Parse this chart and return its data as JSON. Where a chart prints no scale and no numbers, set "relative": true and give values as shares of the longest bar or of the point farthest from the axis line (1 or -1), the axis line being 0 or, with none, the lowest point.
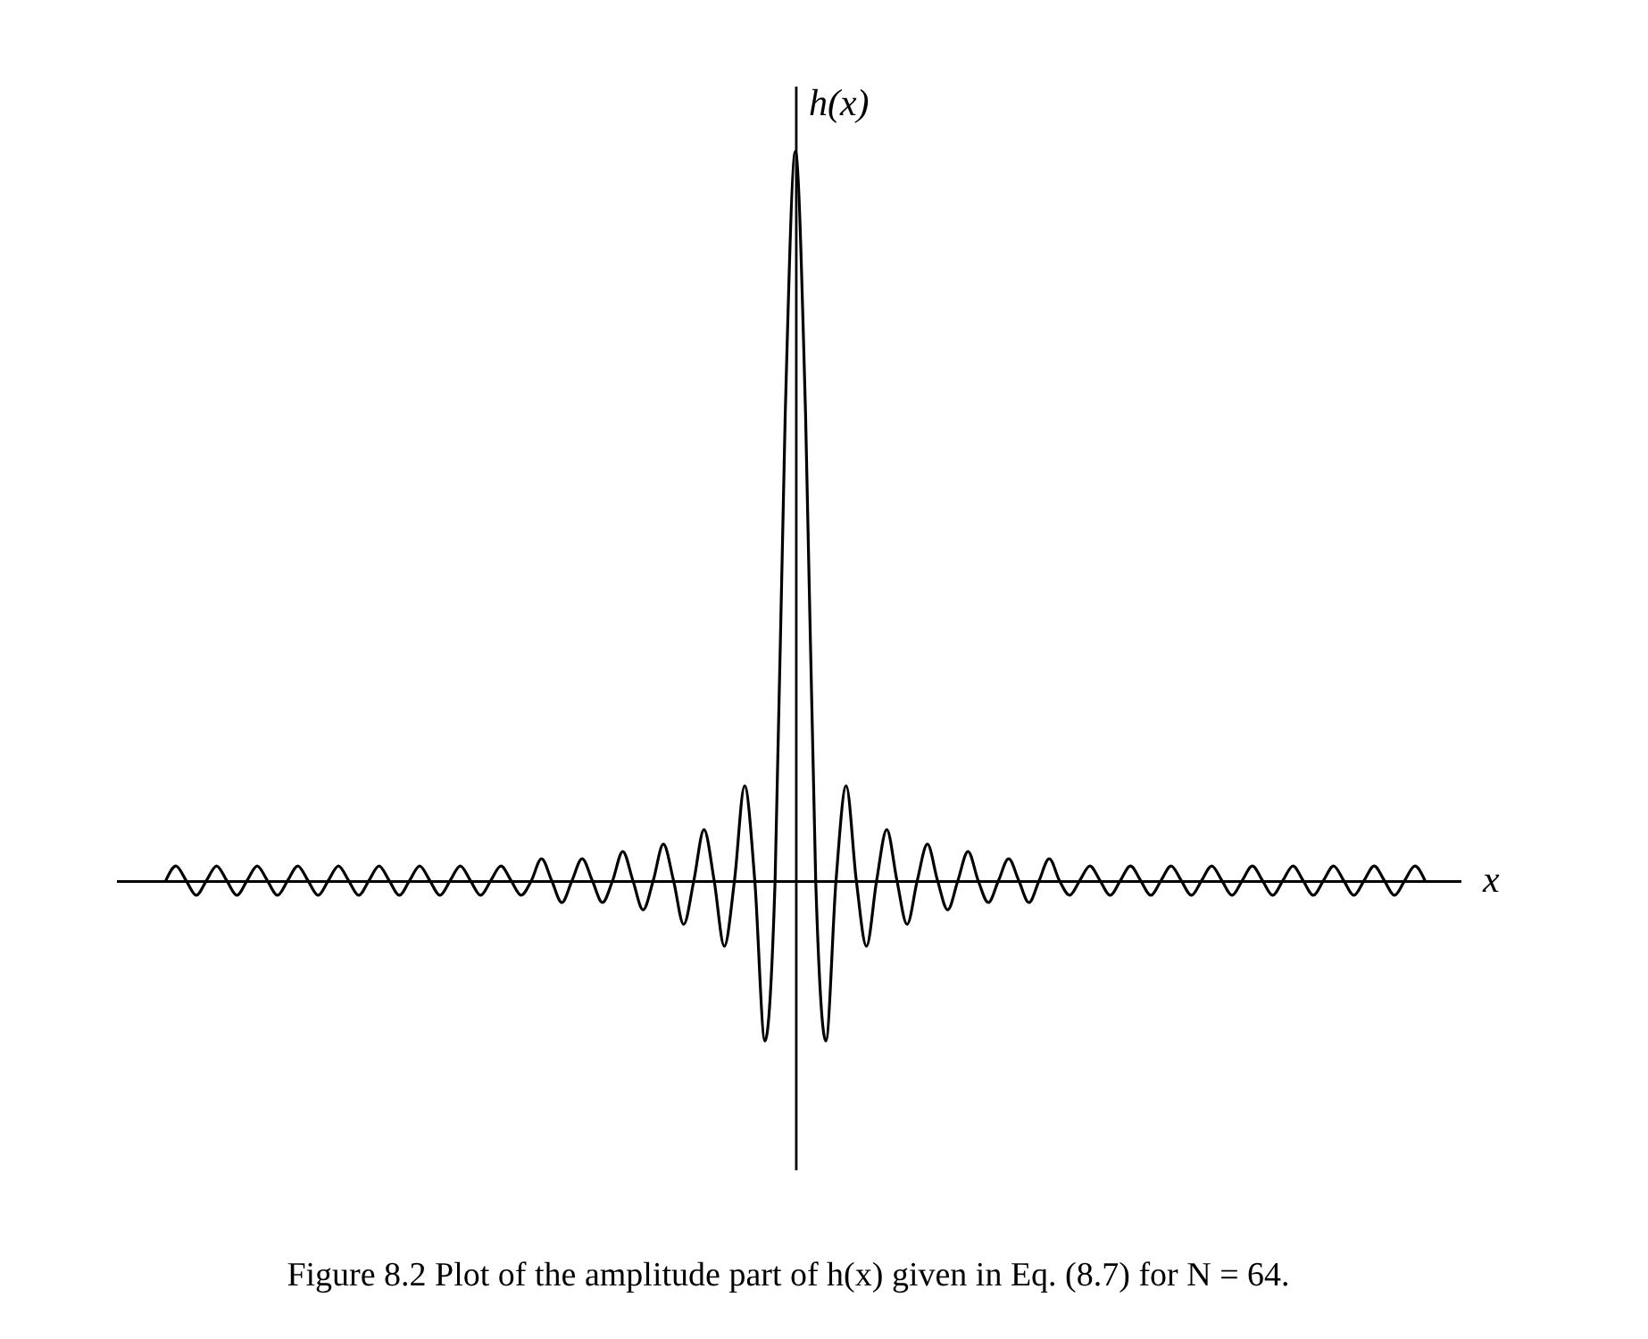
{
  "chart_data": {
    "type": "line",
    "relative": true,
    "xlabel": "x",
    "ylabel": "h(x)",
    "color": "#000000",
    "line_style": "solid",
    "annotations": [
      "Figure 8.2  Plot of the amplitude part of h(x) given in Eq. (8.7) for N = 64."
    ],
    "categories": [
      null,
      null,
      null,
      null,
      null,
      null,
      null,
      null,
      null,
      null,
      null,
      null,
      null,
      null,
      null,
      null,
      null,
      null,
      null,
      null,
      null,
      null,
      null,
      null,
      null,
      null,
      null,
      null,
      null,
      null,
      null,
      null,
      null,
      null,
      null,
      null,
      null,
      null,
      null,
      null,
      null,
      null,
      null,
      null,
      null,
      null,
      null,
      null,
      null,
      null,
      null,
      null,
      null,
      null,
      null,
      null,
      null,
      null,
      null,
      null,
      null,
      null,
      null,
      null,
      null,
      null,
      null,
      null,
      null,
      null,
      null,
      null,
      null,
      null,
      null,
      null,
      null,
      null,
      null,
      null,
      null,
      null,
      null,
      null,
      null,
      null,
      null,
      null,
      null,
      null,
      null,
      null,
      null,
      null,
      null,
      null,
      null,
      null,
      null,
      null,
      null,
      null,
      null,
      null,
      null,
      null,
      null,
      null,
      null,
      null,
      null,
      null,
      null,
      null,
      null,
      null,
      null,
      null,
      null,
      null,
      null,
      null,
      null,
      null,
      null
    ],
    "values": [
      0,
      0.02,
      0,
      -0.02,
      0,
      0.02,
      0,
      -0.02,
      0,
      0.02,
      0,
      -0.02,
      0,
      0.02,
      0,
      -0.02,
      0,
      0.02,
      0,
      -0.02,
      0,
      0.02,
      0,
      -0.02,
      0,
      0.02,
      0,
      -0.02,
      0,
      0.02,
      0,
      -0.02,
      0,
      0.02,
      0,
      -0.02,
      0,
      0.03,
      0,
      -0.03,
      0,
      0.03,
      0,
      -0.03,
      0,
      0.04,
      0,
      -0.04,
      0,
      0.05,
      0,
      -0.06,
      0,
      0.07,
      0,
      -0.09,
      0,
      0.13,
      0,
      -0.22,
      0,
      0.64,
      1,
      0.64,
      0,
      -0.22,
      0,
      0.13,
      0,
      -0.09,
      0,
      0.07,
      0,
      -0.06,
      0,
      0.05,
      0,
      -0.04,
      0,
      0.04,
      0,
      -0.03,
      0,
      0.03,
      0,
      -0.03,
      0,
      0.03,
      0,
      -0.02,
      0,
      0.02,
      0,
      -0.02,
      0,
      0.02,
      0,
      -0.02,
      0,
      0.02,
      0,
      -0.02,
      0,
      0.02,
      0,
      -0.02,
      0,
      0.02,
      0,
      -0.02,
      0,
      0.02,
      0,
      -0.02,
      0,
      0.02,
      0,
      -0.02,
      0,
      0.02,
      0,
      -0.02,
      0,
      0.02,
      0
    ]
  }
}
